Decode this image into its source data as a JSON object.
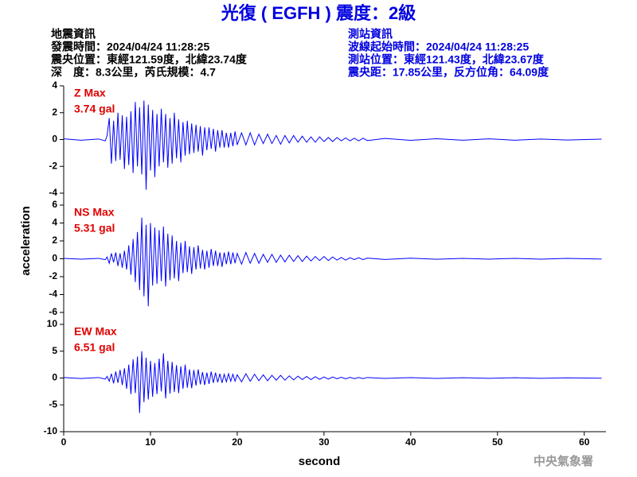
{
  "header": {
    "title": "光復 ( EGFH ) 震度：2級",
    "event_info": [
      "地震資訊",
      "發震時間：2024/04/24 11:28:25",
      "震央位置：東經121.59度，北緯23.74度",
      "深　度：8.3公里，芮氏規模：4.7"
    ],
    "station_info": [
      "測站資訊",
      "波線起始時間：2024/04/24 11:28:25",
      "測站位置：東經121.43度，北緯23.67度",
      "震央距：17.85公里，反方位角：64.09度"
    ],
    "agency": "中央氣象署"
  },
  "chart_data": {
    "type": "line",
    "xlabel": "second",
    "ylabel": "acceleration",
    "xlim": [
      0,
      62.5
    ],
    "xticks": [
      0,
      10,
      20,
      30,
      40,
      50,
      60
    ],
    "x": [
      0,
      2,
      4,
      4.8,
      5,
      5.25,
      5.5,
      5.75,
      6,
      6.25,
      6.5,
      6.75,
      7,
      7.25,
      7.5,
      7.75,
      8,
      8.25,
      8.5,
      8.75,
      9,
      9.25,
      9.5,
      9.75,
      10,
      10.25,
      10.5,
      10.75,
      11,
      11.25,
      11.5,
      11.75,
      12,
      12.25,
      12.5,
      12.75,
      13,
      13.25,
      13.5,
      13.75,
      14,
      14.25,
      14.5,
      14.75,
      15,
      15.25,
      15.5,
      15.75,
      16,
      16.25,
      16.5,
      16.75,
      17,
      17.25,
      17.5,
      17.75,
      18,
      18.25,
      18.5,
      18.75,
      19,
      19.25,
      19.5,
      19.75,
      20,
      20.5,
      21,
      21.5,
      22,
      22.5,
      23,
      23.5,
      24,
      24.5,
      25,
      25.5,
      26,
      26.5,
      27,
      27.5,
      28,
      28.5,
      29,
      29.5,
      30,
      30.5,
      31,
      31.5,
      32,
      32.5,
      33,
      33.5,
      34,
      34.5,
      35,
      37,
      40,
      43,
      46,
      49,
      52,
      55,
      58,
      62
    ],
    "series": [
      {
        "name": "Z Max",
        "max_label": "3.74 gal",
        "color": "#0000ff",
        "ylim": [
          -4,
          4
        ],
        "yticks": [
          -4,
          -2,
          0,
          2,
          4
        ],
        "values": [
          0.05,
          -0.05,
          0.04,
          -0.1,
          0.3,
          1.6,
          -1.8,
          1.4,
          -1.6,
          2.0,
          -1.5,
          1.8,
          -2.2,
          1.7,
          -1.9,
          2.1,
          -2.5,
          2.8,
          -2.0,
          2.4,
          -2.6,
          2.9,
          -3.74,
          2.6,
          -2.3,
          2.2,
          -2.8,
          1.9,
          -2.0,
          2.3,
          -1.7,
          1.9,
          -2.1,
          1.6,
          -1.8,
          2.0,
          -1.4,
          1.5,
          -1.7,
          1.3,
          -1.2,
          1.4,
          -1.1,
          1.2,
          -1.0,
          1.1,
          -0.9,
          1.0,
          -1.2,
          0.9,
          -0.8,
          0.9,
          -0.7,
          0.8,
          -0.9,
          0.7,
          -0.6,
          0.7,
          -0.6,
          0.5,
          -0.6,
          0.5,
          -0.5,
          0.6,
          -0.4,
          0.5,
          -0.4,
          0.5,
          -0.4,
          0.4,
          -0.3,
          0.4,
          -0.3,
          0.3,
          -0.35,
          0.3,
          -0.25,
          0.3,
          -0.2,
          0.25,
          -0.2,
          0.2,
          -0.2,
          0.2,
          -0.15,
          0.15,
          -0.15,
          0.15,
          -0.1,
          0.12,
          -0.1,
          0.1,
          -0.1,
          0.1,
          -0.08,
          0.08,
          -0.06,
          0.06,
          -0.05,
          0.05,
          -0.05,
          0.04,
          -0.04,
          0.03
        ]
      },
      {
        "name": "NS Max",
        "max_label": "5.31 gal",
        "color": "#0000ff",
        "ylim": [
          -6,
          6
        ],
        "yticks": [
          -6,
          -4,
          -2,
          0,
          2,
          4,
          6
        ],
        "values": [
          0.05,
          -0.05,
          0.05,
          -0.1,
          0.2,
          -0.5,
          0.6,
          -0.4,
          0.7,
          -0.8,
          0.6,
          -1.0,
          0.9,
          -1.2,
          1.5,
          -1.8,
          2.2,
          -2.6,
          3.0,
          -3.5,
          4.6,
          -4.2,
          3.8,
          -5.31,
          4.0,
          -3.0,
          3.5,
          -2.8,
          3.2,
          -2.5,
          3.6,
          -3.1,
          2.8,
          -2.4,
          2.6,
          -2.2,
          2.0,
          -2.5,
          1.8,
          -1.6,
          2.0,
          -1.5,
          1.4,
          -1.7,
          1.3,
          -1.2,
          1.5,
          -1.1,
          1.0,
          -1.2,
          0.9,
          -1.0,
          1.1,
          -0.8,
          0.9,
          -0.8,
          0.7,
          -0.9,
          0.7,
          -0.6,
          0.8,
          -0.6,
          0.7,
          -0.5,
          0.6,
          -0.6,
          0.7,
          -0.5,
          0.6,
          -0.5,
          0.5,
          -0.4,
          0.5,
          -0.4,
          0.4,
          -0.35,
          0.4,
          -0.3,
          0.35,
          -0.3,
          0.3,
          -0.25,
          0.25,
          -0.2,
          0.25,
          -0.2,
          0.2,
          -0.15,
          0.15,
          -0.15,
          0.12,
          -0.1,
          0.12,
          -0.1,
          0.08,
          -0.08,
          0.07,
          -0.06,
          0.05,
          -0.05,
          0.05,
          -0.04,
          0.04,
          -0.03
        ]
      },
      {
        "name": "EW Max",
        "max_label": "6.51 gal",
        "color": "#0000ff",
        "ylim": [
          -10,
          10
        ],
        "yticks": [
          -10,
          -5,
          0,
          5,
          10
        ],
        "values": [
          0.1,
          -0.1,
          0.1,
          -0.2,
          0.3,
          -0.6,
          0.8,
          -1.0,
          1.2,
          -0.9,
          1.5,
          -1.3,
          1.8,
          -2.0,
          2.5,
          -3.0,
          3.5,
          -2.8,
          4.0,
          -6.51,
          5.0,
          -4.5,
          3.8,
          -4.0,
          3.2,
          -3.5,
          2.8,
          -3.0,
          3.6,
          -2.5,
          4.6,
          -3.8,
          3.2,
          -2.9,
          3.0,
          -2.6,
          2.4,
          -2.8,
          2.2,
          -2.0,
          2.5,
          -1.8,
          1.6,
          -1.9,
          1.5,
          -1.4,
          1.6,
          -1.2,
          1.1,
          -1.3,
          1.0,
          -1.1,
          1.2,
          -0.9,
          1.0,
          -0.8,
          0.8,
          -0.9,
          0.7,
          -0.7,
          0.8,
          -0.6,
          0.7,
          -0.6,
          0.6,
          -0.7,
          0.8,
          -0.6,
          0.7,
          -0.5,
          0.6,
          -0.5,
          0.5,
          -0.4,
          0.5,
          -0.4,
          0.4,
          -0.35,
          0.35,
          -0.3,
          0.3,
          -0.3,
          0.25,
          -0.25,
          0.2,
          -0.2,
          0.2,
          -0.15,
          0.15,
          -0.15,
          0.12,
          -0.12,
          0.1,
          -0.1,
          0.1,
          -0.08,
          0.08,
          -0.07,
          0.06,
          -0.06,
          0.05,
          -0.05,
          0.04,
          -0.04
        ]
      }
    ]
  }
}
